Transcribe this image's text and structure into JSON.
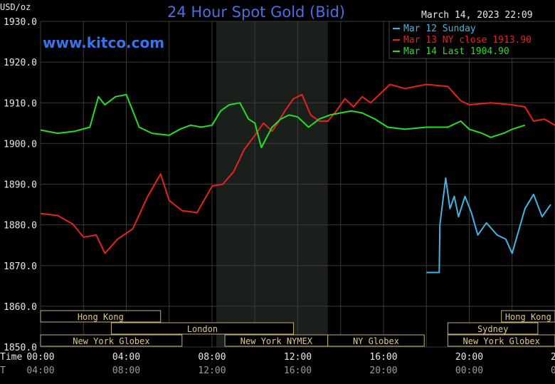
{
  "chart_data": {
    "type": "line",
    "title": "24 Hour Spot Gold (Bid)",
    "subtitle": "www.kitco.com",
    "timestamp": "March 14, 2023 22:09",
    "ylabel": "USD/oz",
    "ylim": [
      1850,
      1930
    ],
    "yticks": [
      "1930.0",
      "1920.0",
      "1910.0",
      "1900.0",
      "1890.0",
      "1880.0",
      "1870.0",
      "1860.0",
      "1850.0"
    ],
    "x_row_label": "Time",
    "x_row_label_2": "T",
    "xticks": [
      "00:00",
      "04:00",
      "08:00",
      "12:00",
      "16:00",
      "20:00",
      "23:"
    ],
    "xticks_2": [
      "04:00",
      "08:00",
      "12:00",
      "16:00",
      "20:00",
      "00:00",
      "03:"
    ],
    "grid": true,
    "legend_placement": "top-right",
    "series": [
      {
        "name": "Mar 12 Sunday",
        "color": "#3fb6e6",
        "x": [
          18.0,
          18.6,
          18.63,
          18.9,
          19.1,
          19.3,
          19.5,
          19.8,
          20.1,
          20.4,
          20.8,
          21.3,
          21.7,
          22.0,
          22.3,
          22.6,
          23.0,
          23.4,
          23.8
        ],
        "y": [
          1868.3,
          1868.3,
          1880,
          1891.5,
          1884,
          1887,
          1882,
          1887,
          1883,
          1877.5,
          1880.5,
          1877.5,
          1876.5,
          1873,
          1878.5,
          1884,
          1887.5,
          1882,
          1885
        ]
      },
      {
        "name": "Mar 13 NY close 1913.90",
        "color": "#e8211c",
        "x": [
          0.0,
          0.8,
          1.5,
          2.0,
          2.6,
          3.0,
          3.6,
          4.3,
          5.0,
          5.6,
          6.0,
          6.6,
          7.3,
          8.0,
          8.5,
          9.0,
          9.5,
          10.0,
          10.4,
          10.8,
          11.0,
          11.4,
          11.8,
          12.2,
          12.6,
          13.0,
          13.4,
          13.8,
          14.2,
          14.6,
          15.0,
          15.4,
          15.8,
          16.3,
          17.0,
          18.0,
          19.0,
          19.6,
          20.0,
          21.0,
          22.0,
          22.6,
          23.0,
          23.5,
          24.0
        ],
        "y": [
          1882.8,
          1882.3,
          1880.2,
          1877,
          1877.5,
          1873,
          1876.5,
          1879,
          1887,
          1892.5,
          1886,
          1883.5,
          1883,
          1889.5,
          1890,
          1893,
          1898.5,
          1902,
          1905,
          1903,
          1904.5,
          1908,
          1911,
          1912,
          1907,
          1905.5,
          1905.5,
          1908,
          1911,
          1909,
          1911.5,
          1910,
          1912,
          1914.5,
          1913.5,
          1914.5,
          1914,
          1910.5,
          1909.5,
          1910,
          1909.5,
          1909,
          1905.5,
          1906,
          1904.5
        ]
      },
      {
        "name": "Mar 14 Last 1904.90",
        "color": "#22e022",
        "x": [
          0.0,
          0.8,
          1.6,
          2.3,
          2.7,
          3.0,
          3.5,
          4.0,
          4.6,
          5.2,
          6.0,
          6.5,
          7.0,
          7.5,
          8.0,
          8.4,
          8.8,
          9.3,
          9.7,
          10.0,
          10.3,
          10.6,
          10.8,
          11.2,
          11.6,
          12.0,
          12.5,
          13.0,
          13.5,
          14.0,
          14.5,
          15.0,
          15.6,
          16.2,
          17.0,
          18.0,
          19.0,
          19.6,
          20.0,
          20.6,
          21.0,
          21.6,
          22.0,
          22.6
        ],
        "y": [
          1903.3,
          1902.5,
          1903,
          1904,
          1911.5,
          1909.5,
          1911.5,
          1912,
          1904,
          1902.5,
          1902,
          1903.5,
          1904.5,
          1904,
          1904.5,
          1908,
          1909.5,
          1910,
          1906,
          1905,
          1899,
          1902,
          1904,
          1906,
          1907,
          1906.5,
          1904,
          1906,
          1907,
          1907.5,
          1908,
          1907.5,
          1906,
          1904,
          1903.5,
          1904,
          1904,
          1905.5,
          1903.5,
          1902.5,
          1901.5,
          1902.5,
          1903.5,
          1904.5
        ]
      }
    ],
    "sessions": [
      {
        "label": "Hong Kong",
        "start": 0,
        "end": 5.6,
        "row": 0
      },
      {
        "label": "London",
        "start": 3.3,
        "end": 11.8,
        "row": 1
      },
      {
        "label": "New York Globex",
        "start": 0,
        "end": 6.6,
        "row": 2
      },
      {
        "label": "New York NYMEX",
        "start": 8.6,
        "end": 13.4,
        "row": 2
      },
      {
        "label": "NY Globex",
        "start": 13.4,
        "end": 17.9,
        "row": 2
      },
      {
        "label": "Hong Kong",
        "start": 21.5,
        "end": 24,
        "row": 0
      },
      {
        "label": "Sydney",
        "start": 19.0,
        "end": 23.2,
        "row": 1
      },
      {
        "label": "New York Globex",
        "start": 19.0,
        "end": 24,
        "row": 2
      }
    ]
  }
}
